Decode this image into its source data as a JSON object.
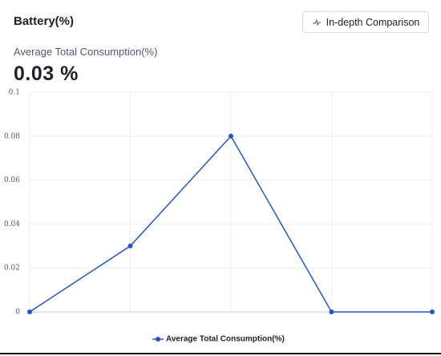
{
  "header": {
    "title": "Battery(%)",
    "button": "In-depth Comparison",
    "metric_label": "Average Total Consumption(%)",
    "metric_value": "0.03 %"
  },
  "chart_data": {
    "type": "line",
    "categories": [
      null,
      null,
      null,
      null,
      null
    ],
    "series": [
      {
        "name": "Average Total Consumption(%)",
        "color": "#2553c9",
        "values": [
          0,
          0.03,
          0.08,
          0,
          0
        ]
      }
    ],
    "ylim": [
      0,
      0.1
    ],
    "yticks": [
      0,
      0.02,
      0.04,
      0.06,
      0.08,
      0.1
    ],
    "grid": true,
    "legend": "bottom"
  }
}
